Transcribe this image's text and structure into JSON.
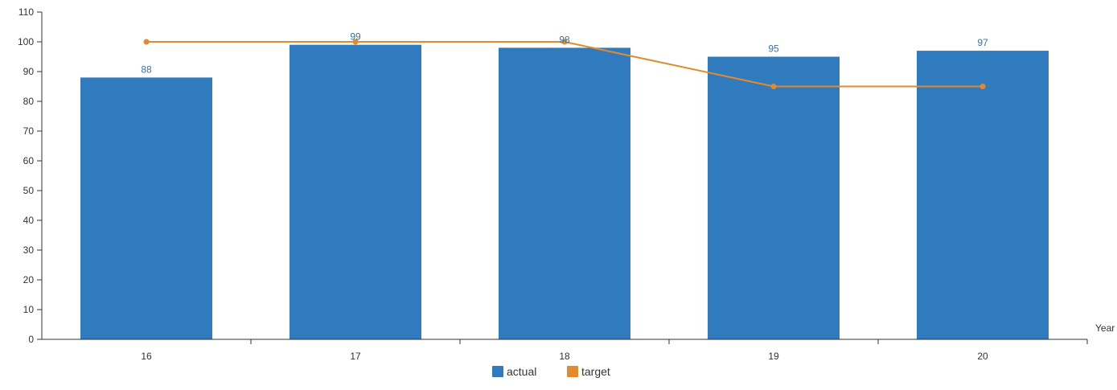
{
  "chart_data": {
    "type": "bar",
    "title": "",
    "xlabel": "Year",
    "ylabel": "",
    "categories": [
      "16",
      "17",
      "18",
      "19",
      "20"
    ],
    "ylim": [
      0,
      110
    ],
    "yticks": [
      0,
      10,
      20,
      30,
      40,
      50,
      60,
      70,
      80,
      90,
      100,
      110
    ],
    "ytick_labels": [
      "0",
      "10",
      "20",
      "30",
      "40",
      "50",
      "60",
      "70",
      "80",
      "90",
      "100",
      "110"
    ],
    "grid": false,
    "legend_position": "bottom",
    "series": [
      {
        "name": "actual",
        "type": "bar",
        "color": "#2f7bbd",
        "values": [
          88,
          99,
          98,
          95,
          97
        ],
        "labels": [
          "88",
          "99",
          "98",
          "95",
          "97"
        ]
      },
      {
        "name": "target",
        "type": "line",
        "color": "#e38a2e",
        "values": [
          100,
          100,
          100,
          85,
          85
        ]
      }
    ]
  }
}
